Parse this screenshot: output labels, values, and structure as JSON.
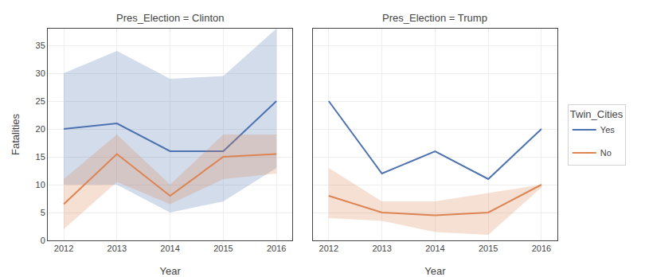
{
  "chart_data": [
    {
      "type": "line",
      "title": "Pres_Election = Clinton",
      "x_label": "Year",
      "y_label": "Fatalities",
      "x": [
        2012,
        2013,
        2014,
        2015,
        2016
      ],
      "series": [
        {
          "name": "Yes",
          "color": "#4c72b0",
          "values": [
            20,
            21,
            16,
            16,
            25
          ],
          "upper": [
            30,
            34,
            29,
            29.5,
            38
          ],
          "lower": [
            10,
            10,
            5,
            7,
            13
          ]
        },
        {
          "name": "No",
          "color": "#dd8452",
          "values": [
            6.5,
            15.5,
            8,
            15,
            15.5
          ],
          "upper": [
            11,
            19,
            10,
            19,
            19
          ],
          "lower": [
            2,
            10.5,
            6.5,
            11,
            12
          ]
        }
      ],
      "xlim": [
        2011.7,
        2016.3
      ],
      "xticks": [
        2012,
        2013,
        2014,
        2015,
        2016
      ],
      "ylim": [
        0,
        38
      ],
      "yticks": [
        0,
        5,
        10,
        15,
        20,
        25,
        30,
        35
      ],
      "grid": true
    },
    {
      "type": "line",
      "title": "Pres_Election = Trump",
      "x_label": "Year",
      "x": [
        2012,
        2013,
        2014,
        2015,
        2016
      ],
      "series": [
        {
          "name": "Yes",
          "color": "#4c72b0",
          "values": [
            25,
            12,
            16,
            11,
            20
          ]
        },
        {
          "name": "No",
          "color": "#dd8452",
          "values": [
            8,
            5,
            4.5,
            5,
            10
          ],
          "upper": [
            13,
            7,
            7,
            8.5,
            10
          ],
          "lower": [
            4,
            3.5,
            1.5,
            1,
            9.5
          ]
        }
      ],
      "xlim": [
        2011.7,
        2016.3
      ],
      "xticks": [
        2012,
        2013,
        2014,
        2015,
        2016
      ],
      "ylim": [
        0,
        38
      ],
      "yticks": [
        0,
        5,
        10,
        15,
        20,
        25,
        30,
        35
      ],
      "grid": true,
      "tick_labels": "x",
      "legend": "right",
      "legend_title": "Twin_Cities"
    }
  ]
}
